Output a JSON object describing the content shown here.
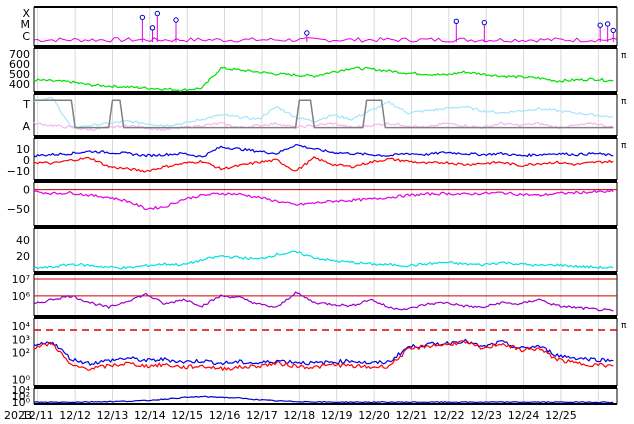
{
  "chart_data": {
    "type": "line",
    "x_start": "2023-12-11",
    "x_end": "2023-12-26",
    "x_tick_labels": [
      "2023",
      "12/11",
      "12/12",
      "12/13",
      "12/14",
      "12/15",
      "12/16",
      "12/17",
      "12/18",
      "12/19",
      "12/20",
      "12/21",
      "12/22",
      "12/23",
      "12/24",
      "12/25"
    ],
    "corner_mark": "π",
    "colors": {
      "magenta": "#e100e1",
      "green": "#00e000",
      "lightblue": "#a6e4ff",
      "pink": "#f7b5f0",
      "red": "#ff0000",
      "blue": "#0000e6",
      "cyan": "#00e0e0",
      "purple": "#9a00c8",
      "gray": "#808080",
      "navy": "#0000cc"
    },
    "panels": [
      {
        "id": "flare",
        "y_tick_labels": [
          "X",
          "M",
          "C"
        ],
        "ylim": [
          0,
          3
        ],
        "series": [
          {
            "color": "magenta",
            "baseline": 0.3,
            "noise": 0.35
          }
        ],
        "events_x": [
          2.9,
          3.17,
          3.3,
          3.8,
          7.3,
          11.3,
          12.05,
          15.15,
          15.35,
          15.5
        ],
        "events_level": [
          2.2,
          1.4,
          2.5,
          2.0,
          1.0,
          1.9,
          1.8,
          1.6,
          1.7,
          1.2
        ]
      },
      {
        "id": "speed",
        "y_tick_labels": [
          "700",
          "600",
          "500",
          "400"
        ],
        "ytick_values": [
          700,
          600,
          500,
          400
        ],
        "ylim": [
          320,
          760
        ],
        "series": [
          {
            "color": "green",
            "x": [
              0,
              0.5,
              1,
              1.5,
              2,
              2.5,
              3,
              3.5,
              4,
              4.5,
              5,
              5.5,
              6,
              6.5,
              7,
              7.5,
              8,
              8.5,
              9,
              9.5,
              10,
              10.5,
              11,
              11.5,
              12,
              12.5,
              13,
              13.5,
              14,
              14.5,
              15,
              15.5
            ],
            "y": [
              440,
              430,
              420,
              390,
              380,
              370,
              360,
              350,
              340,
              360,
              560,
              540,
              520,
              500,
              490,
              480,
              520,
              560,
              550,
              530,
              510,
              500,
              490,
              520,
              500,
              480,
              470,
              460,
              430,
              440,
              450,
              430
            ]
          }
        ]
      },
      {
        "id": "bz-type",
        "y_tick_labels": [
          "T",
          "A"
        ],
        "ylim": [
          0,
          1
        ],
        "series": [
          {
            "color": "lightblue",
            "x": [
              0,
              0.5,
              1,
              1.5,
              2,
              2.5,
              3,
              3.5,
              4,
              4.5,
              5,
              5.5,
              6,
              6.5,
              7,
              7.5,
              8,
              8.5,
              9,
              9.5,
              10,
              10.5,
              11,
              11.5,
              12,
              12.5,
              13,
              13.5,
              14,
              14.5,
              15,
              15.5
            ],
            "y": [
              0.85,
              0.9,
              0.2,
              0.25,
              0.3,
              0.35,
              0.3,
              0.25,
              0.3,
              0.4,
              0.5,
              0.45,
              0.4,
              0.7,
              0.45,
              0.35,
              0.5,
              0.4,
              0.6,
              0.8,
              0.55,
              0.6,
              0.65,
              0.7,
              0.6,
              0.55,
              0.6,
              0.65,
              0.6,
              0.55,
              0.5,
              0.45
            ]
          },
          {
            "color": "pink",
            "x": [
              0,
              0.5,
              1,
              1.5,
              2,
              2.5,
              3,
              3.5,
              4,
              4.5,
              5,
              5.5,
              6,
              6.5,
              7,
              7.5,
              8,
              8.5,
              9,
              9.5,
              10,
              10.5,
              11,
              11.5,
              12,
              12.5,
              13,
              13.5,
              14,
              14.5,
              15,
              15.5
            ],
            "y": [
              0.3,
              0.25,
              0.2,
              0.15,
              0.2,
              0.25,
              0.2,
              0.15,
              0.2,
              0.25,
              0.3,
              0.2,
              0.25,
              0.3,
              0.2,
              0.25,
              0.3,
              0.2,
              0.25,
              0.3,
              0.25,
              0.2,
              0.3,
              0.25,
              0.2,
              0.3,
              0.25,
              0.3,
              0.2,
              0.25,
              0.3,
              0.2
            ]
          },
          {
            "color": "gray",
            "x": [
              0,
              1,
              1.1,
              2.0,
              2.1,
              2.3,
              2.4,
              7.0,
              7.1,
              7.4,
              7.5,
              8.8,
              8.9,
              9.1,
              9.3,
              9.4,
              15.5
            ],
            "y": [
              0.85,
              0.85,
              0.2,
              0.2,
              0.85,
              0.85,
              0.2,
              0.2,
              0.85,
              0.85,
              0.2,
              0.2,
              0.85,
              0.85,
              0.85,
              0.2,
              0.2
            ]
          }
        ]
      },
      {
        "id": "bz",
        "y_tick_labels": [
          "10",
          "0",
          "−10"
        ],
        "ytick_values": [
          10,
          0,
          -10
        ],
        "ylim": [
          -18,
          20
        ],
        "series": [
          {
            "color": "blue",
            "x": [
              0,
              0.5,
              1,
              1.5,
              2,
              2.5,
              3,
              3.5,
              4,
              4.5,
              5,
              5.5,
              6,
              6.5,
              7,
              7.5,
              8,
              8.5,
              9,
              9.5,
              10,
              10.5,
              11,
              11.5,
              12,
              12.5,
              13,
              13.5,
              14,
              14.5,
              15,
              15.5
            ],
            "y": [
              4,
              5,
              6,
              8,
              7,
              6,
              4,
              5,
              6,
              3,
              12,
              10,
              8,
              6,
              14,
              10,
              7,
              6,
              5,
              4,
              6,
              5,
              7,
              6,
              5,
              6,
              4,
              5,
              6,
              5,
              6,
              4
            ]
          },
          {
            "color": "red",
            "x": [
              0,
              0.5,
              1,
              1.5,
              2,
              2.5,
              3,
              3.5,
              4,
              4.5,
              5,
              5.5,
              6,
              6.5,
              7,
              7.5,
              8,
              8.5,
              9,
              9.5,
              10,
              10.5,
              11,
              11.5,
              12,
              12.5,
              13,
              13.5,
              14,
              14.5,
              15,
              15.5
            ],
            "y": [
              -2,
              -3,
              0,
              2,
              -6,
              -8,
              -10,
              -6,
              -3,
              -1,
              -8,
              -5,
              -2,
              0,
              -10,
              2,
              -4,
              -6,
              -2,
              1,
              -1,
              -3,
              -2,
              -4,
              -3,
              -2,
              -5,
              -3,
              -2,
              -4,
              -2,
              -1
            ]
          }
        ]
      },
      {
        "id": "dst",
        "y_tick_labels": [
          "0",
          "−50"
        ],
        "ytick_values": [
          0,
          -50
        ],
        "ylim": [
          -95,
          20
        ],
        "series": [
          {
            "color": "magenta",
            "x": [
              0,
              0.5,
              1,
              1.5,
              2,
              2.5,
              3,
              3.5,
              4,
              4.5,
              5,
              5.5,
              6,
              6.5,
              7,
              7.5,
              8,
              8.5,
              9,
              9.5,
              10,
              10.5,
              11,
              11.5,
              12,
              12.5,
              13,
              13.5,
              14,
              14.5,
              15,
              15.5
            ],
            "y": [
              -5,
              -10,
              -8,
              -15,
              -20,
              -30,
              -50,
              -45,
              -25,
              -15,
              -10,
              -12,
              -20,
              -30,
              -40,
              -35,
              -30,
              -28,
              -25,
              -20,
              -15,
              -12,
              -10,
              -12,
              -10,
              -8,
              -12,
              -15,
              -10,
              -8,
              -6,
              -5
            ]
          }
        ]
      },
      {
        "id": "kp",
        "y_tick_labels": [
          "40",
          "20"
        ],
        "ytick_values": [
          40,
          20
        ],
        "ylim": [
          0,
          55
        ],
        "series": [
          {
            "color": "cyan",
            "x": [
              0,
              0.5,
              1,
              1.5,
              2,
              2.5,
              3,
              3.5,
              4,
              4.5,
              5,
              5.5,
              6,
              6.5,
              7,
              7.5,
              8,
              8.5,
              9,
              9.5,
              10,
              10.5,
              11,
              11.5,
              12,
              12.5,
              13,
              13.5,
              14,
              14.5,
              15,
              15.5
            ],
            "y": [
              5,
              6,
              10,
              8,
              6,
              5,
              8,
              10,
              9,
              15,
              20,
              18,
              16,
              22,
              25,
              18,
              14,
              12,
              10,
              9,
              8,
              10,
              12,
              10,
              9,
              12,
              10,
              8,
              9,
              7,
              6,
              5
            ]
          }
        ]
      },
      {
        "id": "proton-flux",
        "y_tick_labels": [
          "10⁷",
          "10⁶"
        ],
        "ytick_values": [
          7,
          6
        ],
        "ylim": [
          4.8,
          7.3
        ],
        "series": [
          {
            "color": "purple",
            "x": [
              0,
              0.5,
              1,
              1.5,
              2,
              2.5,
              3,
              3.5,
              4,
              4.5,
              5,
              5.5,
              6,
              6.5,
              7,
              7.5,
              8,
              8.5,
              9,
              9.5,
              10,
              10.5,
              11,
              11.5,
              12,
              12.5,
              13,
              13.5,
              14,
              14.5,
              15,
              15.5
            ],
            "y": [
              5.5,
              5.8,
              6.0,
              5.6,
              5.3,
              5.7,
              6.1,
              5.5,
              5.8,
              5.4,
              6.0,
              5.9,
              5.5,
              5.3,
              6.2,
              5.6,
              5.5,
              5.4,
              5.8,
              5.3,
              5.2,
              5.5,
              5.6,
              5.4,
              5.3,
              5.6,
              5.5,
              5.8,
              5.4,
              5.3,
              5.2,
              5.1
            ]
          }
        ],
        "ref_lines": [
          7,
          6
        ]
      },
      {
        "id": "electron-flux",
        "y_tick_labels": [
          "10⁴",
          "10³",
          "10²",
          "10⁰"
        ],
        "ytick_values": [
          4,
          3,
          2,
          0
        ],
        "ylim": [
          -0.5,
          4.6
        ],
        "series": [
          {
            "color": "blue",
            "x": [
              0,
              0.5,
              1,
              1.5,
              2,
              2.5,
              3,
              3.5,
              4,
              4.5,
              5,
              5.5,
              6,
              6.5,
              7,
              7.5,
              8,
              8.5,
              9,
              9.5,
              10,
              10.5,
              11,
              11.5,
              12,
              12.5,
              13,
              13.5,
              14,
              14.5,
              15,
              15.5
            ],
            "y": [
              2.5,
              2.8,
              1.5,
              1.2,
              1.4,
              1.6,
              1.4,
              1.5,
              1.3,
              1.4,
              1.2,
              1.3,
              1.2,
              1.4,
              1.3,
              1.2,
              1.3,
              1.4,
              1.2,
              1.3,
              2.4,
              2.6,
              2.7,
              2.9,
              2.4,
              2.8,
              2.3,
              2.5,
              1.8,
              1.6,
              1.5,
              1.4
            ]
          },
          {
            "color": "red",
            "x": [
              0,
              0.5,
              1,
              1.5,
              2,
              2.5,
              3,
              3.5,
              4,
              4.5,
              5,
              5.5,
              6,
              6.5,
              7,
              7.5,
              8,
              8.5,
              9,
              9.5,
              10,
              10.5,
              11,
              11.5,
              12,
              12.5,
              13,
              13.5,
              14,
              14.5,
              15,
              15.5
            ],
            "y": [
              2.4,
              2.7,
              1.0,
              0.8,
              1.0,
              1.2,
              1.0,
              1.1,
              0.9,
              1.0,
              0.8,
              0.9,
              1.0,
              1.2,
              1.0,
              0.9,
              1.1,
              1.0,
              0.9,
              1.0,
              2.2,
              2.5,
              2.6,
              2.8,
              2.3,
              2.7,
              2.2,
              2.3,
              1.5,
              1.2,
              1.1,
              1.0
            ]
          }
        ],
        "ref_lines_dashed": [
          3.7
        ]
      },
      {
        "id": "electron-flux-low",
        "y_tick_labels": [
          "10⁴",
          "10²",
          "10⁰"
        ],
        "ytick_values": [
          4,
          2,
          0
        ],
        "ylim": [
          -0.6,
          4.6
        ],
        "series": [
          {
            "color": "navy",
            "x": [
              0,
              0.5,
              1,
              1.5,
              2,
              2.5,
              3,
              3.5,
              4,
              4.5,
              5,
              5.5,
              6,
              6.5,
              7,
              7.5,
              8,
              8.5,
              9,
              9.5,
              10,
              10.5,
              11,
              11.5,
              12,
              12.5,
              13,
              13.5,
              14,
              14.5,
              15,
              15.5
            ],
            "y": [
              0,
              0,
              0,
              0.1,
              0.2,
              0.3,
              0.5,
              1.0,
              1.5,
              1.8,
              1.6,
              1.3,
              0.8,
              0.4,
              0.2,
              0.1,
              0,
              0,
              0,
              0,
              0,
              0,
              0,
              0,
              0,
              0,
              0,
              0,
              0,
              0,
              0,
              0
            ]
          }
        ]
      }
    ]
  }
}
